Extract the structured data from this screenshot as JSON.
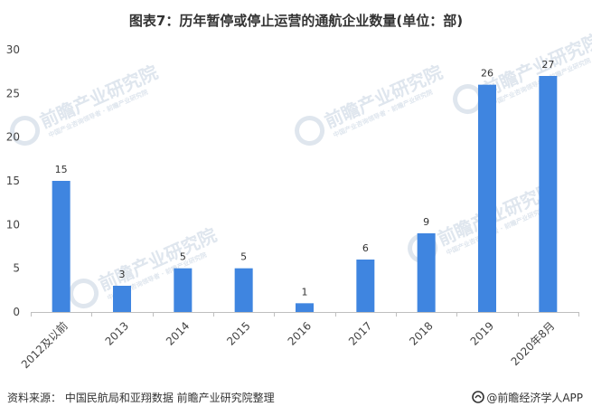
{
  "chart_data": {
    "type": "bar",
    "title": "图表7：历年暂停或停止运营的通航企业数量(单位：部)",
    "xlabel": "",
    "ylabel": "",
    "categories": [
      "2012及以前",
      "2013",
      "2014",
      "2015",
      "2016",
      "2017",
      "2018",
      "2019",
      "2020年8月"
    ],
    "values": [
      15,
      3,
      5,
      5,
      1,
      6,
      9,
      26,
      27
    ],
    "ylim": [
      0,
      30
    ],
    "yticks": [
      0,
      5,
      10,
      15,
      20,
      25,
      30
    ],
    "grid": false,
    "bar_color": "#3f85e0",
    "legend": "none"
  },
  "watermark": {
    "brand": "前瞻产业研究院",
    "sub": "中国产业咨询领导者 · 前瞻产业研究院"
  },
  "footer": {
    "source": "资料来源： 中国民航局和亚翔数据 前瞻产业研究院整理",
    "brand": "@前瞻经济学人APP"
  }
}
